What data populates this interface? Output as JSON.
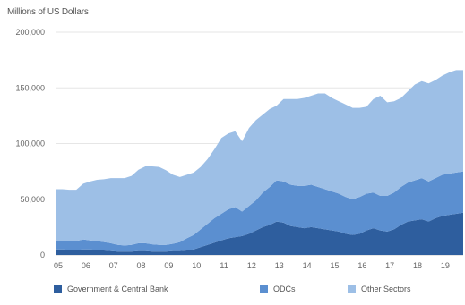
{
  "chart_data": {
    "type": "area",
    "stacked": true,
    "title": "",
    "ylabel": "Millions of US Dollars",
    "xlabel": "",
    "ylim": [
      0,
      200000
    ],
    "yticks": [
      0,
      50000,
      100000,
      150000,
      200000
    ],
    "ytick_labels": [
      "0",
      "50,000",
      "100,000",
      "150,000",
      "200,000"
    ],
    "xlim": [
      2005.0,
      2019.75
    ],
    "xticks": [
      2005,
      2006,
      2007,
      2008,
      2009,
      2010,
      2011,
      2012,
      2013,
      2014,
      2015,
      2016,
      2017,
      2018,
      2019
    ],
    "xtick_labels": [
      "05",
      "06",
      "07",
      "08",
      "09",
      "10",
      "11",
      "12",
      "13",
      "14",
      "15",
      "16",
      "17",
      "18",
      "19"
    ],
    "grid": "horizontal",
    "legend_position": "bottom",
    "x": [
      2005.0,
      2005.25,
      2005.5,
      2005.75,
      2006.0,
      2006.25,
      2006.5,
      2006.75,
      2007.0,
      2007.25,
      2007.5,
      2007.75,
      2008.0,
      2008.25,
      2008.5,
      2008.75,
      2009.0,
      2009.25,
      2009.5,
      2009.75,
      2010.0,
      2010.25,
      2010.5,
      2010.75,
      2011.0,
      2011.25,
      2011.5,
      2011.75,
      2012.0,
      2012.25,
      2012.5,
      2012.75,
      2013.0,
      2013.25,
      2013.5,
      2013.75,
      2014.0,
      2014.25,
      2014.5,
      2014.75,
      2015.0,
      2015.25,
      2015.5,
      2015.75,
      2016.0,
      2016.25,
      2016.5,
      2016.75,
      2017.0,
      2017.25,
      2017.5,
      2017.75,
      2018.0,
      2018.25,
      2018.5,
      2018.75,
      2019.0,
      2019.25,
      2019.5,
      2019.75
    ],
    "series": [
      {
        "name": "Government & Central Bank",
        "color": "#2e5e9e",
        "values": [
          5000,
          5000,
          4500,
          4500,
          5000,
          5000,
          4500,
          4000,
          3500,
          3000,
          3000,
          3000,
          3500,
          3500,
          3000,
          3000,
          3000,
          3500,
          3500,
          4000,
          5000,
          7000,
          9000,
          11000,
          13000,
          15000,
          16000,
          17000,
          19000,
          22000,
          25000,
          27000,
          30000,
          29000,
          26000,
          25000,
          24000,
          25000,
          24000,
          23000,
          22000,
          21000,
          19000,
          18000,
          19000,
          22000,
          24000,
          22000,
          21000,
          23000,
          27000,
          30000,
          31000,
          32000,
          30000,
          33000,
          35000,
          36000,
          37000,
          38000
        ]
      },
      {
        "name": "ODCs",
        "color": "#5b8fd0",
        "values": [
          8000,
          7000,
          8000,
          8000,
          9000,
          8000,
          8000,
          7500,
          7000,
          6000,
          5500,
          6000,
          7000,
          7000,
          6500,
          6000,
          6000,
          6500,
          8000,
          11000,
          13000,
          16000,
          19000,
          22000,
          24000,
          26000,
          27000,
          22000,
          25000,
          27000,
          31000,
          34000,
          37000,
          37000,
          37000,
          37000,
          38000,
          38000,
          37000,
          36000,
          35000,
          34000,
          33000,
          32000,
          33000,
          33000,
          32000,
          31000,
          32000,
          33000,
          34000,
          35000,
          36000,
          37000,
          36000,
          36000,
          37000,
          37000,
          37000,
          37000
        ]
      },
      {
        "name": "Other Sectors",
        "color": "#9dbfe6",
        "values": [
          46000,
          47000,
          46000,
          46000,
          50000,
          53000,
          55000,
          56500,
          58500,
          60000,
          60500,
          62000,
          66000,
          69000,
          70000,
          70000,
          67000,
          62000,
          58500,
          57000,
          56000,
          56000,
          58000,
          62000,
          68000,
          68000,
          68000,
          63000,
          70000,
          72000,
          70000,
          70000,
          67000,
          74000,
          77000,
          78000,
          79000,
          80000,
          84000,
          86000,
          84000,
          83000,
          83000,
          82000,
          80000,
          78000,
          84000,
          90000,
          84000,
          82000,
          80000,
          82000,
          86000,
          87000,
          88000,
          88000,
          89000,
          91000,
          92000,
          91000
        ]
      }
    ]
  }
}
